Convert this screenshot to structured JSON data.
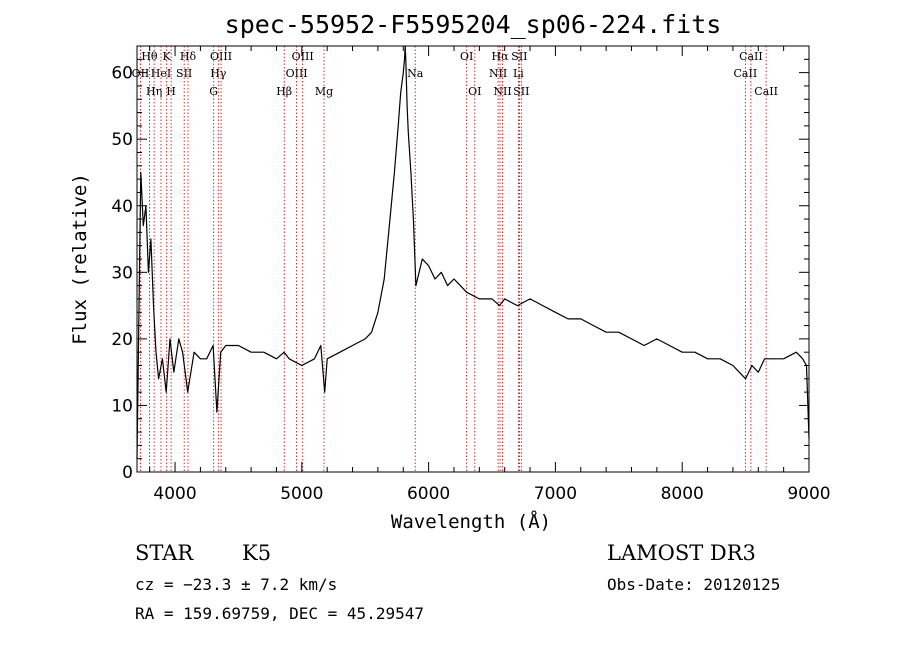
{
  "chart_data": {
    "type": "line",
    "title": "spec-55952-F5595204_sp06-224.fits",
    "xlabel": "Wavelength (Å)",
    "ylabel": "Flux (relative)",
    "xlim": [
      3700,
      9000
    ],
    "ylim": [
      0,
      64
    ],
    "xticks": [
      4000,
      5000,
      6000,
      7000,
      8000,
      9000
    ],
    "yticks": [
      0,
      10,
      20,
      30,
      40,
      50,
      60
    ],
    "grid": false,
    "series": [
      {
        "x": [
          3700,
          3730,
          3750,
          3770,
          3790,
          3810,
          3830,
          3850,
          3870,
          3900,
          3930,
          3960,
          3990,
          4030,
          4060,
          4100,
          4150,
          4200,
          4250,
          4300,
          4330,
          4360,
          4400,
          4500,
          4600,
          4700,
          4800,
          4860,
          4900,
          5000,
          5100,
          5150,
          5180,
          5200,
          5300,
          5400,
          5500,
          5550,
          5600,
          5650,
          5700,
          5730,
          5760,
          5780,
          5800,
          5810,
          5815,
          5820,
          5830,
          5840,
          5860,
          5880,
          5900,
          5950,
          6000,
          6050,
          6100,
          6150,
          6200,
          6250,
          6300,
          6400,
          6500,
          6560,
          6600,
          6700,
          6800,
          6900,
          7000,
          7100,
          7200,
          7300,
          7400,
          7500,
          7600,
          7700,
          7800,
          7900,
          8000,
          8100,
          8200,
          8300,
          8400,
          8450,
          8500,
          8550,
          8600,
          8650,
          8700,
          8800,
          8900,
          8950,
          8980,
          9000
        ],
        "values": [
          2,
          45,
          37,
          40,
          30,
          35,
          25,
          18,
          14,
          17,
          12,
          20,
          15,
          20,
          18,
          12,
          18,
          17,
          17,
          19,
          9,
          18,
          19,
          19,
          18,
          18,
          17,
          18,
          17,
          16,
          17,
          19,
          12,
          17,
          18,
          19,
          20,
          21,
          24,
          29,
          39,
          45,
          52,
          57,
          60,
          62,
          65,
          62,
          55,
          51,
          45,
          38,
          28,
          32,
          31,
          29,
          30,
          28,
          29,
          28,
          27,
          26,
          26,
          25,
          26,
          25,
          26,
          25,
          24,
          23,
          23,
          22,
          21,
          21,
          20,
          19,
          20,
          19,
          18,
          18,
          17,
          17,
          16,
          15,
          14,
          16,
          15,
          17,
          17,
          17,
          18,
          17,
          16,
          5
        ]
      }
    ],
    "spectral_lines": [
      {
        "name": "Hθ",
        "x": 3798,
        "row": 0
      },
      {
        "name": "OII",
        "x": 3727,
        "row": 1
      },
      {
        "name": "Hη",
        "x": 3835,
        "row": 2
      },
      {
        "name": "K",
        "x": 3934,
        "row": 0
      },
      {
        "name": "HeI",
        "x": 3889,
        "row": 1
      },
      {
        "name": "H",
        "x": 3969,
        "row": 2
      },
      {
        "name": "Hδ",
        "x": 4102,
        "row": 0
      },
      {
        "name": "SII",
        "x": 4072,
        "row": 1
      },
      {
        "name": "OIII",
        "x": 4363,
        "row": 0
      },
      {
        "name": "Hγ",
        "x": 4341,
        "row": 1
      },
      {
        "name": "G",
        "x": 4305,
        "row": 2
      },
      {
        "name": "OIII",
        "x": 5007,
        "row": 0
      },
      {
        "name": "OIII",
        "x": 4959,
        "row": 1
      },
      {
        "name": "Hβ",
        "x": 4861,
        "row": 2
      },
      {
        "name": "Mg",
        "x": 5175,
        "row": 2
      },
      {
        "name": "Na",
        "x": 5894,
        "row": 1
      },
      {
        "name": "OI",
        "x": 6300,
        "row": 0
      },
      {
        "name": "OI",
        "x": 6364,
        "row": 2
      },
      {
        "name": "Hα",
        "x": 6563,
        "row": 0
      },
      {
        "name": "SII",
        "x": 6716,
        "row": 0
      },
      {
        "name": "NII",
        "x": 6548,
        "row": 1
      },
      {
        "name": "Li",
        "x": 6708,
        "row": 1
      },
      {
        "name": "NII",
        "x": 6583,
        "row": 2
      },
      {
        "name": "SII",
        "x": 6731,
        "row": 2
      },
      {
        "name": "CaII",
        "x": 8542,
        "row": 0
      },
      {
        "name": "CaII",
        "x": 8498,
        "row": 1
      },
      {
        "name": "CaII",
        "x": 8662,
        "row": 2
      }
    ]
  },
  "info": {
    "object_class": "STAR",
    "subclass": "K5",
    "survey": "LAMOST DR3",
    "cz": "cz = −23.3 ± 7.2 km/s",
    "obs_date": "Obs-Date: 20120125",
    "coords": "RA = 159.69759, DEC =  45.29547"
  },
  "colors": {
    "spectrum": "#000000",
    "line_markers": "#c00000",
    "axes": "#000000"
  }
}
